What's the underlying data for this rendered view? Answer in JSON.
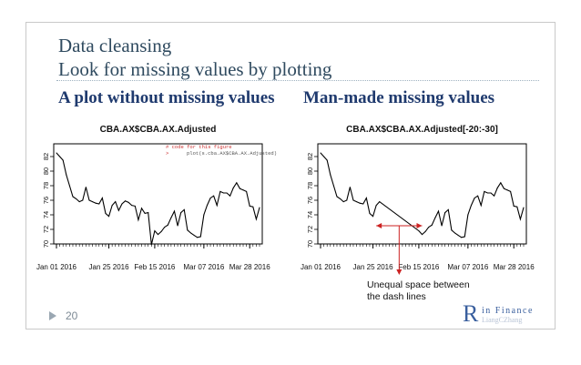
{
  "slide": {
    "title_line1": "Data cleansing",
    "title_line2": "Look for missing values by plotting",
    "left_heading": "A plot without missing values",
    "right_heading": "Man-made missing values",
    "page_number": "20",
    "logo_letter": "R",
    "logo_line1": "in Finance",
    "logo_line2": "LiangCZhang",
    "annotation_line1": "Unequal space between",
    "annotation_line2": "the dash lines"
  },
  "colors": {
    "title": "#2f4a5f",
    "heading": "#1f3a6e",
    "series": "#000000",
    "code_comment": "#cc3333",
    "code_text": "#555555",
    "annotation_arrow": "#cc2222",
    "logo": "#3a5f9e"
  },
  "chart_data": [
    {
      "type": "line",
      "title": "CBA.AX$CBA.AX.Adjusted",
      "code_comment": "# code for this figure",
      "code_line": "plot(s.cba.AX$CBA.AX.Adjusted)",
      "code_prompt": ">",
      "ylim": [
        70,
        83
      ],
      "yticks": [
        "70",
        "72",
        "74",
        "76",
        "78",
        "80",
        "82"
      ],
      "xticks": [
        "Jan 01 2016",
        "Jan 25 2016",
        "Feb 15 2016",
        "Mar 07 2016",
        "Mar 28 2016"
      ],
      "xtick_index": [
        0,
        16,
        30,
        45,
        59
      ],
      "n_points": 63,
      "series": [
        {
          "name": "CBA.AX.Adjusted",
          "index": [
            0,
            1,
            2,
            3,
            4,
            5,
            6,
            7,
            8,
            9,
            10,
            11,
            12,
            13,
            14,
            15,
            16,
            17,
            18,
            19,
            20,
            21,
            22,
            23,
            24,
            25,
            26,
            27,
            28,
            29,
            30,
            31,
            32,
            33,
            34,
            35,
            36,
            37,
            38,
            39,
            40,
            41,
            42,
            43,
            44,
            45,
            46,
            47,
            48,
            49,
            50,
            51,
            52,
            53,
            54,
            55,
            56,
            57,
            58,
            59,
            60,
            61,
            62
          ],
          "values": [
            82.5,
            82.0,
            81.5,
            79.5,
            78.0,
            76.5,
            76.2,
            75.8,
            76.0,
            77.8,
            76.0,
            75.8,
            75.6,
            75.5,
            76.3,
            74.2,
            73.8,
            75.3,
            75.8,
            74.6,
            75.5,
            75.9,
            75.7,
            75.3,
            75.2,
            73.3,
            74.9,
            74.2,
            74.3,
            69.9,
            71.8,
            71.3,
            71.7,
            72.3,
            72.6,
            73.6,
            74.5,
            72.5,
            74.3,
            74.7,
            71.9,
            71.5,
            71.2,
            70.9,
            71.0,
            74.0,
            75.3,
            76.3,
            76.6,
            75.3,
            77.2,
            77.0,
            77.0,
            76.6,
            77.7,
            78.4,
            77.6,
            77.4,
            77.2,
            75.2,
            75.1,
            73.4,
            75.0
          ]
        }
      ]
    },
    {
      "type": "line",
      "title": "CBA.AX$CBA.AX.Adjusted[-20:-30]",
      "ylim": [
        70,
        83
      ],
      "yticks": [
        "70",
        "72",
        "74",
        "76",
        "78",
        "80",
        "82"
      ],
      "xticks": [
        "Jan 01 2016",
        "Jan 25 2016",
        "Feb 15 2016",
        "Mar 07 2016",
        "Mar 28 2016"
      ],
      "xtick_index": [
        0,
        16,
        30,
        45,
        59
      ],
      "n_points": 63,
      "removed_index_range": [
        19,
        29
      ],
      "series": [
        {
          "name": "CBA.AX.Adjusted[-20:-30]",
          "index": [
            0,
            1,
            2,
            3,
            4,
            5,
            6,
            7,
            8,
            9,
            10,
            11,
            12,
            13,
            14,
            15,
            16,
            17,
            18,
            30,
            31,
            32,
            33,
            34,
            35,
            36,
            37,
            38,
            39,
            40,
            41,
            42,
            43,
            44,
            45,
            46,
            47,
            48,
            49,
            50,
            51,
            52,
            53,
            54,
            55,
            56,
            57,
            58,
            59,
            60,
            61,
            62
          ],
          "values": [
            82.5,
            82.0,
            81.5,
            79.5,
            78.0,
            76.5,
            76.2,
            75.8,
            76.0,
            77.8,
            76.0,
            75.8,
            75.6,
            75.5,
            76.3,
            74.2,
            73.8,
            75.3,
            75.8,
            71.8,
            71.3,
            71.7,
            72.3,
            72.6,
            73.6,
            74.5,
            72.5,
            74.3,
            74.7,
            71.9,
            71.5,
            71.2,
            70.9,
            71.0,
            74.0,
            75.3,
            76.3,
            76.6,
            75.3,
            77.2,
            77.0,
            77.0,
            76.6,
            77.7,
            78.4,
            77.6,
            77.4,
            77.2,
            75.2,
            75.1,
            73.4,
            75.0
          ]
        }
      ],
      "annotation": {
        "arrow_from_index": 17,
        "arrow_to_index": 31,
        "arrow_value": 72.5
      }
    }
  ]
}
